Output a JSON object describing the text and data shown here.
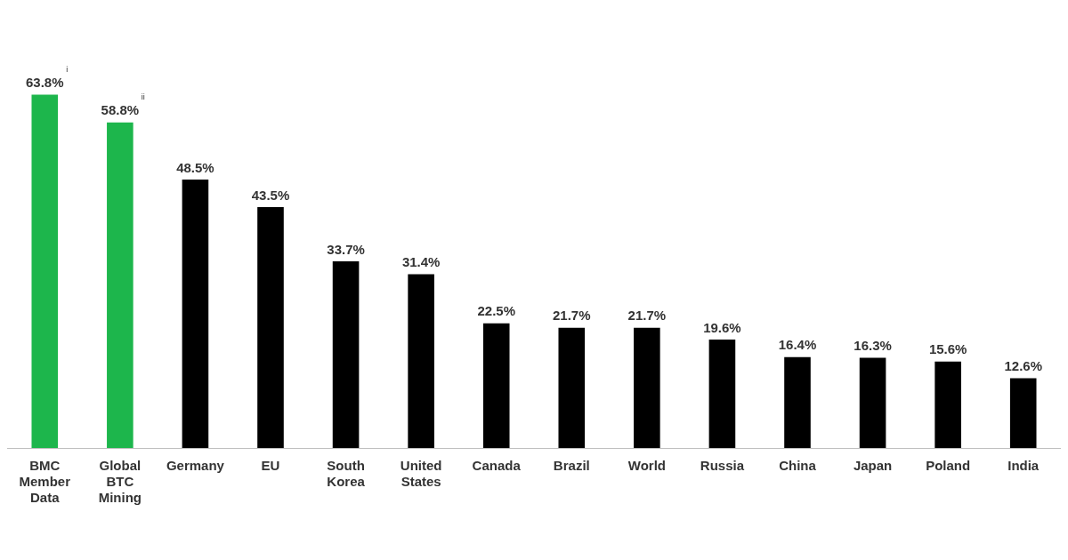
{
  "chart_data": {
    "type": "bar",
    "categories": [
      "BMC Member Data",
      "Global BTC Mining",
      "Germany",
      "EU",
      "South Korea",
      "United States",
      "Canada",
      "Brazil",
      "World",
      "Russia",
      "China",
      "Japan",
      "Poland",
      "India"
    ],
    "values": [
      63.8,
      58.8,
      48.5,
      43.5,
      33.7,
      31.4,
      22.5,
      21.7,
      21.7,
      19.6,
      16.4,
      16.3,
      15.6,
      12.6
    ],
    "value_labels": [
      "63.8%",
      "58.8%",
      "48.5%",
      "43.5%",
      "33.7%",
      "31.4%",
      "22.5%",
      "21.7%",
      "21.7%",
      "19.6%",
      "16.4%",
      "16.3%",
      "15.6%",
      "12.6%"
    ],
    "colors": [
      "#1db64c",
      "#1db64c",
      "#000000",
      "#000000",
      "#000000",
      "#000000",
      "#000000",
      "#000000",
      "#000000",
      "#000000",
      "#000000",
      "#000000",
      "#000000",
      "#000000"
    ],
    "annotations": [
      "i",
      "ii"
    ],
    "grid": false,
    "legend": false
  }
}
